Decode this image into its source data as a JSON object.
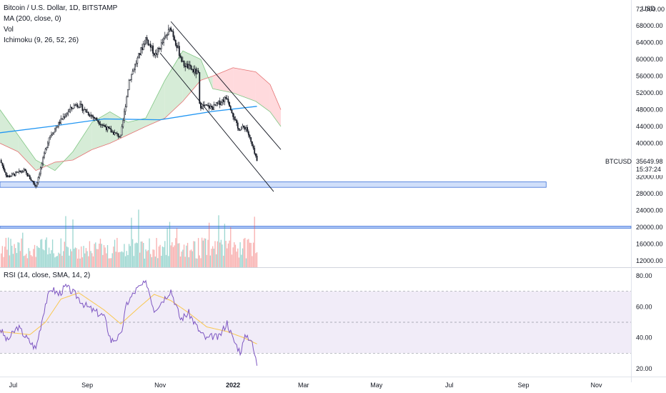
{
  "legend": {
    "symbol": "Bitcoin / U.S. Dollar, 1D, BITSTAMP",
    "ma": "MA (200, close, 0)",
    "vol": "Vol",
    "ichimoku": "Ichimoku (9, 26, 52, 26)"
  },
  "rsi_legend": "RSI (14, close, SMA, 14, 2)",
  "currency": "USD",
  "top_tick_partial": "72 000.00",
  "price_axis_ticks": [
    "68000.00",
    "64000.00",
    "60000.00",
    "56000.00",
    "52000.00",
    "48000.00",
    "44000.00",
    "40000.00",
    "32000.00",
    "28000.00",
    "24000.00",
    "20000.00",
    "16000.00",
    "12000.00"
  ],
  "price_label": {
    "symbol": "BTCUSD",
    "price": "35649.98",
    "countdown": "15:37:24"
  },
  "rsi_axis_ticks": [
    "80.00",
    "60.00",
    "40.00",
    "20.00"
  ],
  "time_axis_ticks": [
    "Jul",
    "Sep",
    "Nov",
    "2022",
    "Mar",
    "May",
    "Jul",
    "Sep",
    "Nov"
  ],
  "colors": {
    "up": "#26a69a",
    "down": "#ef5350",
    "candle": "#131722",
    "ma": "#2196f3",
    "cloud_bull": "#c8e6c9",
    "cloud_bear": "#ffcdd2",
    "rsi": "#7e57c2",
    "rsi_ma": "#f9c74f",
    "rsi_band": "#ede7f6",
    "support": "#a9c4f5",
    "trend": "#131722"
  },
  "chart_data": [
    {
      "type": "candlestick",
      "title": "Bitcoin / U.S. Dollar, 1D, BITSTAMP",
      "x_range": [
        "2021-06-20",
        "2022-11-30"
      ],
      "ylim": [
        10000,
        72000
      ],
      "close_key_points": [
        {
          "date": "2021-06-20",
          "close": 36000
        },
        {
          "date": "2021-06-26",
          "close": 32000
        },
        {
          "date": "2021-07-10",
          "close": 33500
        },
        {
          "date": "2021-07-20",
          "close": 29800
        },
        {
          "date": "2021-07-31",
          "close": 41500
        },
        {
          "date": "2021-08-14",
          "close": 47000
        },
        {
          "date": "2021-08-23",
          "close": 49500
        },
        {
          "date": "2021-09-07",
          "close": 46000
        },
        {
          "date": "2021-09-20",
          "close": 43000
        },
        {
          "date": "2021-09-29",
          "close": 41500
        },
        {
          "date": "2021-10-06",
          "close": 55000
        },
        {
          "date": "2021-10-20",
          "close": 65000
        },
        {
          "date": "2021-10-28",
          "close": 61000
        },
        {
          "date": "2021-11-10",
          "close": 67500
        },
        {
          "date": "2021-11-20",
          "close": 59000
        },
        {
          "date": "2021-12-03",
          "close": 56500
        },
        {
          "date": "2021-12-04",
          "close": 49000
        },
        {
          "date": "2021-12-15",
          "close": 48500
        },
        {
          "date": "2021-12-27",
          "close": 51000
        },
        {
          "date": "2022-01-05",
          "close": 43500
        },
        {
          "date": "2022-01-12",
          "close": 43800
        },
        {
          "date": "2022-01-21",
          "close": 35649.98
        }
      ],
      "ma_200": [
        {
          "date": "2021-06-20",
          "value": 42500
        },
        {
          "date": "2021-08-01",
          "value": 44000
        },
        {
          "date": "2021-09-15",
          "value": 45800
        },
        {
          "date": "2021-11-01",
          "value": 45600
        },
        {
          "date": "2021-12-15",
          "value": 47600
        },
        {
          "date": "2022-01-21",
          "value": 48800
        }
      ],
      "ichimoku_cloud": [
        {
          "date": "2021-06-20",
          "a": 48000,
          "b": 40000
        },
        {
          "date": "2021-07-05",
          "a": 42000,
          "b": 38000
        },
        {
          "date": "2021-07-20",
          "a": 36000,
          "b": 33500
        },
        {
          "date": "2021-08-05",
          "a": 33500,
          "b": 35500
        },
        {
          "date": "2021-08-20",
          "a": 38000,
          "b": 36000
        },
        {
          "date": "2021-09-05",
          "a": 45000,
          "b": 38500
        },
        {
          "date": "2021-09-20",
          "a": 47500,
          "b": 40000
        },
        {
          "date": "2021-10-05",
          "a": 45000,
          "b": 42000
        },
        {
          "date": "2021-10-20",
          "a": 46000,
          "b": 44000
        },
        {
          "date": "2021-11-05",
          "a": 55000,
          "b": 46000
        },
        {
          "date": "2021-11-20",
          "a": 62000,
          "b": 50000
        },
        {
          "date": "2021-12-05",
          "a": 60000,
          "b": 55000
        },
        {
          "date": "2021-12-15",
          "a": 53000,
          "b": 56000
        },
        {
          "date": "2022-01-01",
          "a": 52000,
          "b": 58000
        },
        {
          "date": "2022-01-20",
          "a": 50000,
          "b": 57000
        },
        {
          "date": "2022-02-01",
          "a": 47500,
          "b": 54000
        },
        {
          "date": "2022-02-10",
          "a": 44000,
          "b": 48000
        }
      ],
      "trend_channel": [
        {
          "from_date": "2021-11-10",
          "from_price": 69000,
          "to_date": "2022-02-10",
          "to_price": 38500
        },
        {
          "from_date": "2021-11-01",
          "from_price": 61500,
          "to_date": "2022-02-04",
          "to_price": 28500
        }
      ],
      "support_zone": {
        "from_date": "2021-06-20",
        "to_date": "2022-09-20",
        "low": 29500,
        "high": 30800
      },
      "support_line": {
        "price": 20000
      },
      "last_price": 35649.98
    },
    {
      "type": "bar",
      "title": "Vol",
      "note": "volume histogram, no value labels shown",
      "x_range": [
        "2021-06-20",
        "2022-01-21"
      ]
    },
    {
      "type": "line",
      "title": "RSI (14, close, SMA, 14, 2)",
      "ylim": [
        15,
        83
      ],
      "bands": [
        30,
        50,
        70
      ],
      "rsi_key_points": [
        {
          "date": "2021-06-20",
          "value": 46
        },
        {
          "date": "2021-06-26",
          "value": 38
        },
        {
          "date": "2021-07-05",
          "value": 47
        },
        {
          "date": "2021-07-12",
          "value": 40
        },
        {
          "date": "2021-07-20",
          "value": 33
        },
        {
          "date": "2021-07-28",
          "value": 62
        },
        {
          "date": "2021-08-02",
          "value": 72
        },
        {
          "date": "2021-08-08",
          "value": 68
        },
        {
          "date": "2021-08-14",
          "value": 73
        },
        {
          "date": "2021-08-22",
          "value": 68
        },
        {
          "date": "2021-08-30",
          "value": 61
        },
        {
          "date": "2021-09-07",
          "value": 57
        },
        {
          "date": "2021-09-15",
          "value": 54
        },
        {
          "date": "2021-09-21",
          "value": 38
        },
        {
          "date": "2021-09-29",
          "value": 41
        },
        {
          "date": "2021-10-04",
          "value": 62
        },
        {
          "date": "2021-10-12",
          "value": 71
        },
        {
          "date": "2021-10-17",
          "value": 74
        },
        {
          "date": "2021-10-21",
          "value": 75
        },
        {
          "date": "2021-10-27",
          "value": 58
        },
        {
          "date": "2021-11-05",
          "value": 66
        },
        {
          "date": "2021-11-10",
          "value": 71
        },
        {
          "date": "2021-11-18",
          "value": 52
        },
        {
          "date": "2021-11-25",
          "value": 56
        },
        {
          "date": "2021-12-04",
          "value": 44
        },
        {
          "date": "2021-12-10",
          "value": 39
        },
        {
          "date": "2021-12-15",
          "value": 41
        },
        {
          "date": "2021-12-20",
          "value": 40
        },
        {
          "date": "2021-12-27",
          "value": 50
        },
        {
          "date": "2022-01-01",
          "value": 39
        },
        {
          "date": "2022-01-07",
          "value": 31
        },
        {
          "date": "2022-01-12",
          "value": 42
        },
        {
          "date": "2022-01-16",
          "value": 39
        },
        {
          "date": "2022-01-21",
          "value": 23
        }
      ],
      "rsi_ma_key_points": [
        {
          "date": "2021-06-20",
          "value": 44
        },
        {
          "date": "2021-07-15",
          "value": 42
        },
        {
          "date": "2021-07-28",
          "value": 50
        },
        {
          "date": "2021-08-10",
          "value": 65
        },
        {
          "date": "2021-08-25",
          "value": 69
        },
        {
          "date": "2021-09-15",
          "value": 58
        },
        {
          "date": "2021-09-29",
          "value": 49
        },
        {
          "date": "2021-10-12",
          "value": 58
        },
        {
          "date": "2021-10-27",
          "value": 68
        },
        {
          "date": "2021-11-10",
          "value": 64
        },
        {
          "date": "2021-11-25",
          "value": 56
        },
        {
          "date": "2021-12-10",
          "value": 47
        },
        {
          "date": "2021-12-27",
          "value": 44
        },
        {
          "date": "2022-01-10",
          "value": 40
        },
        {
          "date": "2022-01-21",
          "value": 36
        }
      ]
    }
  ]
}
